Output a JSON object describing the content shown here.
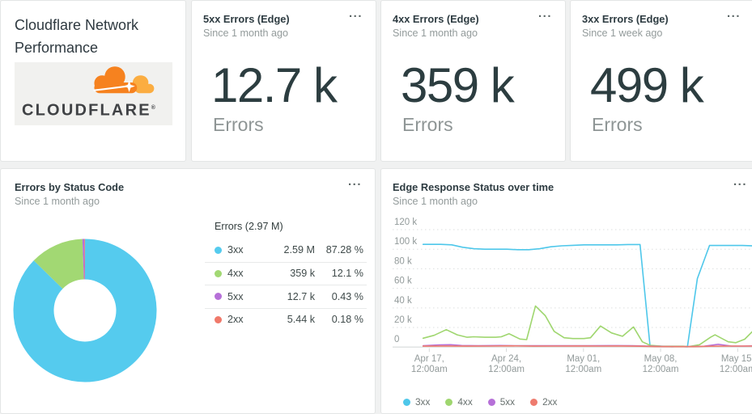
{
  "page": {
    "background": "#f0f1f1"
  },
  "logo_card": {
    "title_line1": "Cloudflare Network",
    "title_line2": "Performance",
    "brand": "CLOUDFLARE",
    "registered_mark": "®",
    "colors": {
      "cloud_main": "#F6821F",
      "cloud_light": "#FBAD41",
      "brand_text": "#404245",
      "logo_bg": "#f1f1ef"
    }
  },
  "kpis": [
    {
      "title": "5xx Errors (Edge)",
      "subtitle": "Since 1 month ago",
      "value": "12.7 k",
      "unit": "Errors",
      "menu": "..."
    },
    {
      "title": "4xx Errors (Edge)",
      "subtitle": "Since 1 month ago",
      "value": "359 k",
      "unit": "Errors",
      "menu": "..."
    },
    {
      "title": "3xx Errors (Edge)",
      "subtitle": "Since 1 week ago",
      "value": "499 k",
      "unit": "Errors",
      "menu": "..."
    }
  ],
  "donut_card": {
    "title": "Errors by Status Code",
    "subtitle": "Since 1 month ago",
    "menu": "..."
  },
  "line_card": {
    "title": "Edge Response Status over time",
    "subtitle": "Since 1 month ago",
    "menu": "..."
  },
  "chart_data": [
    {
      "type": "pie",
      "variant": "donut",
      "title": "Errors by Status Code",
      "subtitle": "Since 1 month ago",
      "total_label": "Errors (2.97 M)",
      "start_angle": "12 o'clock, clockwise",
      "slices": [
        {
          "label": "3xx",
          "value_label": "2.59 M",
          "percent": 87.28,
          "percent_label": "87.28 %",
          "color": "#55cbee"
        },
        {
          "label": "4xx",
          "value_label": "359 k",
          "percent": 12.1,
          "percent_label": "12.1 %",
          "color": "#a2d873"
        },
        {
          "label": "5xx",
          "value_label": "12.7 k",
          "percent": 0.43,
          "percent_label": "0.43 %",
          "color": "#b670d8"
        },
        {
          "label": "2xx",
          "value_label": "5.44 k",
          "percent": 0.18,
          "percent_label": "0.18 %",
          "color": "#f0796a"
        }
      ]
    },
    {
      "type": "line",
      "title": "Edge Response Status over time",
      "subtitle": "Since 1 month ago",
      "unit": "thousands of errors (k)",
      "ylim_k": [
        0,
        124
      ],
      "grid": "horizontal-dotted",
      "legend_position": "bottom",
      "y_ticks": [
        {
          "label": "120 k",
          "value": 120
        },
        {
          "label": "100 k",
          "value": 100
        },
        {
          "label": "80 k",
          "value": 80
        },
        {
          "label": "60 k",
          "value": 60
        },
        {
          "label": "40 k",
          "value": 40
        },
        {
          "label": "20 k",
          "value": 20
        },
        {
          "label": "0",
          "value": 0
        }
      ],
      "x_ticks": [
        {
          "day": 0.56,
          "line1": "Apr 17,",
          "line2": "12:00am"
        },
        {
          "day": 7.56,
          "line1": "Apr 24,",
          "line2": "12:00am"
        },
        {
          "day": 14.56,
          "line1": "May 01,",
          "line2": "12:00am"
        },
        {
          "day": 21.56,
          "line1": "May 08,",
          "line2": "12:00am"
        },
        {
          "day": 28.56,
          "line1": "May 15,",
          "line2": "12:00am"
        }
      ],
      "series": [
        {
          "name": "3xx",
          "color": "#4ec7ea",
          "points_day_k": [
            [
              0,
              105
            ],
            [
              0.6,
              105
            ],
            [
              1.6,
              105
            ],
            [
              2.6,
              104.5
            ],
            [
              3.6,
              102
            ],
            [
              4.6,
              100.5
            ],
            [
              5.6,
              100
            ],
            [
              6.6,
              100
            ],
            [
              7.6,
              100
            ],
            [
              8.6,
              99.5
            ],
            [
              9.6,
              99.5
            ],
            [
              10.6,
              100.5
            ],
            [
              11.6,
              102.5
            ],
            [
              12.6,
              103.5
            ],
            [
              13.6,
              104
            ],
            [
              14.6,
              104.5
            ],
            [
              15.6,
              104.5
            ],
            [
              16.6,
              104.5
            ],
            [
              17.6,
              104.5
            ],
            [
              18.6,
              104.8
            ],
            [
              19.7,
              104.8
            ],
            [
              20.6,
              1.5
            ],
            [
              21.6,
              0.8
            ],
            [
              22.6,
              0.3
            ],
            [
              23.3,
              0.6
            ],
            [
              24,
              0.2
            ],
            [
              24.9,
              70
            ],
            [
              26,
              103.8
            ],
            [
              27,
              103.8
            ],
            [
              28,
              103.8
            ],
            [
              29,
              103.8
            ],
            [
              30,
              103.4
            ]
          ]
        },
        {
          "name": "4xx",
          "color": "#9fd66f",
          "points_day_k": [
            [
              0,
              9
            ],
            [
              1,
              12
            ],
            [
              2.1,
              17.8
            ],
            [
              3.1,
              12.5
            ],
            [
              4,
              10
            ],
            [
              4.6,
              10.5
            ],
            [
              5.6,
              10
            ],
            [
              6.6,
              10
            ],
            [
              7.1,
              10.5
            ],
            [
              7.8,
              13.6
            ],
            [
              8.8,
              8.2
            ],
            [
              9.4,
              7.6
            ],
            [
              10.2,
              42
            ],
            [
              11.1,
              32
            ],
            [
              11.9,
              16
            ],
            [
              12.8,
              9.5
            ],
            [
              13.6,
              8.7
            ],
            [
              14.6,
              8.7
            ],
            [
              15.2,
              9.5
            ],
            [
              16.1,
              21.5
            ],
            [
              17.1,
              14.5
            ],
            [
              18.1,
              11
            ],
            [
              19.1,
              20.6
            ],
            [
              19.9,
              5.4
            ],
            [
              20.6,
              1.8
            ],
            [
              21.6,
              1
            ],
            [
              22.6,
              0.8
            ],
            [
              23.6,
              0.8
            ],
            [
              24.1,
              0.4
            ],
            [
              25.1,
              2.4
            ],
            [
              26.1,
              10
            ],
            [
              26.5,
              12.5
            ],
            [
              27.7,
              5.4
            ],
            [
              28.4,
              4.5
            ],
            [
              29.2,
              8
            ],
            [
              30,
              17
            ]
          ]
        },
        {
          "name": "5xx",
          "color": "#b670d8",
          "points_day_k": [
            [
              0,
              1.3
            ],
            [
              1.5,
              2.2
            ],
            [
              2.5,
              2.4
            ],
            [
              3.5,
              1.6
            ],
            [
              5,
              1.3
            ],
            [
              7,
              1.6
            ],
            [
              9,
              1.3
            ],
            [
              11,
              1.4
            ],
            [
              13,
              1.3
            ],
            [
              15,
              1.3
            ],
            [
              17,
              1.5
            ],
            [
              19,
              1.3
            ],
            [
              20.5,
              0.9
            ],
            [
              22,
              0.5
            ],
            [
              24,
              0.4
            ],
            [
              25.5,
              0.8
            ],
            [
              26.8,
              2.8
            ],
            [
              28,
              1
            ],
            [
              29,
              1
            ],
            [
              30,
              1.2
            ]
          ]
        },
        {
          "name": "2xx",
          "color": "#ee7b6e",
          "points_day_k": [
            [
              0,
              0.9
            ],
            [
              2,
              1.1
            ],
            [
              4,
              0.9
            ],
            [
              6,
              1
            ],
            [
              8,
              1.2
            ],
            [
              10,
              0.9
            ],
            [
              12,
              1
            ],
            [
              14,
              1.1
            ],
            [
              16,
              1
            ],
            [
              18,
              1.1
            ],
            [
              19.8,
              0.8
            ],
            [
              21,
              0.5
            ],
            [
              23,
              0.4
            ],
            [
              24.5,
              0.4
            ],
            [
              26,
              0.8
            ],
            [
              28,
              1
            ],
            [
              30,
              1
            ]
          ]
        }
      ]
    }
  ]
}
